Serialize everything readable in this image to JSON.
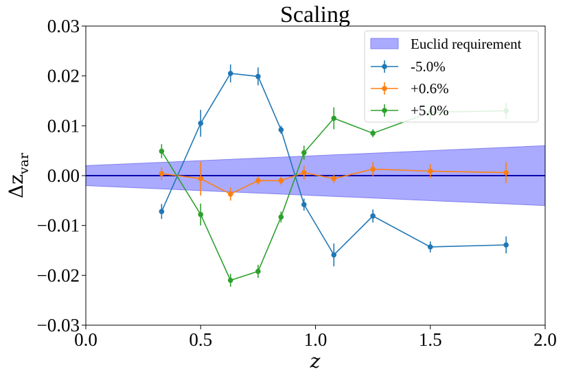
{
  "chart_data": {
    "type": "line",
    "title": "Scaling",
    "xlabel": "z",
    "ylabel_main": "Δz",
    "ylabel_sub": "var",
    "xlim": [
      0.0,
      2.0
    ],
    "ylim": [
      -0.03,
      0.03
    ],
    "xticks": [
      0.0,
      0.5,
      1.0,
      1.5,
      2.0
    ],
    "xtick_labels": [
      "0.0",
      "0.5",
      "1.0",
      "1.5",
      "2.0"
    ],
    "yticks": [
      -0.03,
      -0.02,
      -0.01,
      0.0,
      0.01,
      0.02,
      0.03
    ],
    "ytick_labels": [
      "−0.03",
      "−0.02",
      "−0.01",
      "0.00",
      "0.01",
      "0.02",
      "0.03"
    ],
    "grid": false,
    "legend_position": "top-right",
    "requirement_band": {
      "name": "Euclid requirement",
      "color": "#aaaaff",
      "edge_color": "#8080f0",
      "x": [
        0.0,
        2.0
      ],
      "upper": [
        0.002,
        0.006
      ],
      "lower": [
        -0.002,
        -0.006
      ]
    },
    "zero_line_color": "#0000aa",
    "series": [
      {
        "name": "-5.0%",
        "color": "#1f77b4",
        "x": [
          0.33,
          0.5,
          0.63,
          0.75,
          0.85,
          0.95,
          1.08,
          1.25,
          1.5,
          1.83
        ],
        "y": [
          -0.0072,
          0.0105,
          0.0205,
          0.0199,
          0.0092,
          -0.0058,
          -0.0159,
          -0.0081,
          -0.0143,
          -0.0139
        ],
        "err": [
          0.0015,
          0.0027,
          0.0018,
          0.0018,
          0.0008,
          0.0012,
          0.0023,
          0.0013,
          0.0011,
          0.0017
        ]
      },
      {
        "name": "+0.6%",
        "color": "#ff7f0e",
        "x": [
          0.33,
          0.5,
          0.63,
          0.75,
          0.85,
          0.95,
          1.08,
          1.25,
          1.5,
          1.83
        ],
        "y": [
          0.0004,
          -0.0006,
          -0.0037,
          -0.001,
          -0.001,
          0.0006,
          -0.0006,
          0.0013,
          0.0009,
          0.0006
        ],
        "err": [
          0.0013,
          0.0034,
          0.0013,
          0.0008,
          0.0008,
          0.0014,
          0.0009,
          0.0014,
          0.0014,
          0.0021
        ]
      },
      {
        "name": "+5.0%",
        "color": "#2ca02c",
        "x": [
          0.33,
          0.5,
          0.63,
          0.75,
          0.85,
          0.95,
          1.08,
          1.25,
          1.5,
          1.83
        ],
        "y": [
          0.0049,
          -0.0078,
          -0.021,
          -0.0192,
          -0.0083,
          0.0046,
          0.0115,
          0.0085,
          0.0127,
          0.013
        ],
        "err": [
          0.0014,
          0.0022,
          0.0013,
          0.0013,
          0.0011,
          0.0014,
          0.0022,
          0.0008,
          0.0014,
          0.0016
        ]
      }
    ]
  }
}
